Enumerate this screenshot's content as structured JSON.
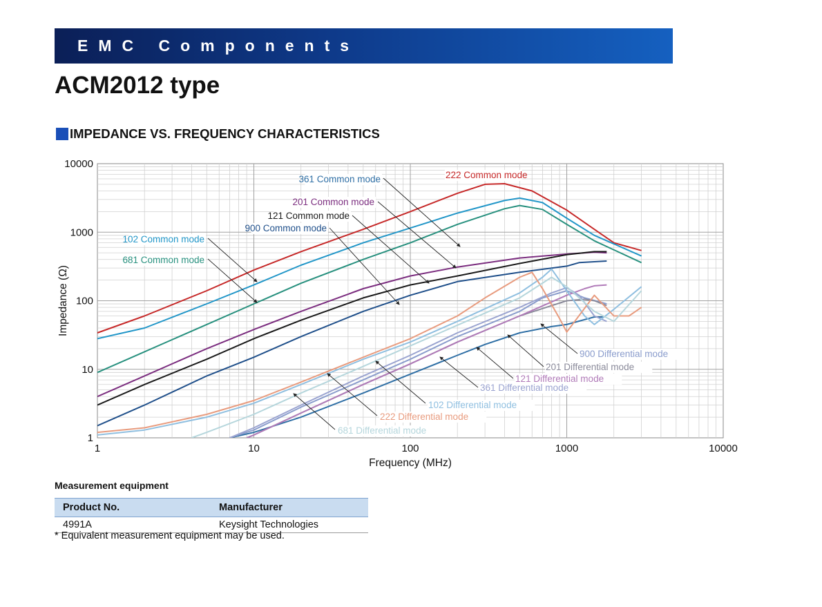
{
  "header": {
    "banner": "EMC Components",
    "title": "ACM2012 type"
  },
  "section": {
    "heading": "IMPEDANCE VS. FREQUENCY CHARACTERISTICS",
    "icon": "square-bullet-icon"
  },
  "chart_data": {
    "type": "line",
    "xlabel": "Frequency (MHz)",
    "ylabel": "Impedance (Ω)",
    "xscale": "log",
    "yscale": "log",
    "xlim": [
      1,
      10000
    ],
    "ylim": [
      1,
      10000
    ],
    "xticks": [
      "1",
      "10",
      "100",
      "1000",
      "10000"
    ],
    "yticks": [
      "1",
      "10",
      "100",
      "1000",
      "10000"
    ],
    "grid": true,
    "series": [
      {
        "name": "222 Common mode",
        "color": "#c62828",
        "x": [
          1,
          2,
          5,
          10,
          20,
          50,
          100,
          200,
          300,
          400,
          600,
          1000,
          1500,
          2000,
          3000
        ],
        "y": [
          34,
          60,
          140,
          280,
          520,
          1100,
          2000,
          3700,
          5000,
          5100,
          4000,
          2100,
          1100,
          700,
          540
        ]
      },
      {
        "name": "361 Common mode",
        "color": "#2f6fa5",
        "x": [
          7,
          10,
          20,
          50,
          100,
          200,
          300,
          500,
          800,
          1000,
          1500,
          1700
        ],
        "y": [
          1,
          1.2,
          2,
          4.5,
          8.5,
          16,
          23,
          34,
          42,
          45,
          58,
          58
        ]
      },
      {
        "name": "201 Common mode",
        "color": "#7b2d7f",
        "x": [
          1,
          2,
          5,
          10,
          20,
          50,
          100,
          200,
          500,
          1000,
          1500,
          1800
        ],
        "y": [
          4,
          8,
          20,
          38,
          70,
          150,
          230,
          310,
          420,
          480,
          510,
          500
        ]
      },
      {
        "name": "121 Common mode",
        "color": "#1a1a1a",
        "x": [
          1,
          2,
          5,
          10,
          20,
          50,
          100,
          200,
          500,
          1000,
          1500,
          1800
        ],
        "y": [
          3,
          6,
          14,
          28,
          52,
          110,
          170,
          230,
          350,
          470,
          520,
          520
        ]
      },
      {
        "name": "900 Common mode",
        "color": "#1f4f8a",
        "x": [
          1,
          2,
          5,
          10,
          20,
          50,
          100,
          200,
          500,
          1000,
          1200,
          1800
        ],
        "y": [
          1.5,
          3,
          8,
          15,
          30,
          70,
          120,
          190,
          260,
          320,
          360,
          380
        ]
      },
      {
        "name": "102 Common mode",
        "color": "#2196c8",
        "x": [
          1,
          2,
          5,
          10,
          20,
          50,
          100,
          200,
          400,
          500,
          700,
          1000,
          1500,
          3000
        ],
        "y": [
          28,
          40,
          90,
          170,
          330,
          700,
          1150,
          1900,
          2900,
          3150,
          2700,
          1600,
          900,
          450
        ]
      },
      {
        "name": "681 Common mode",
        "color": "#27907e",
        "x": [
          1,
          2,
          5,
          10,
          20,
          50,
          100,
          200,
          400,
          500,
          700,
          1000,
          1500,
          3000
        ],
        "y": [
          9,
          18,
          45,
          90,
          180,
          400,
          700,
          1300,
          2200,
          2450,
          2150,
          1300,
          750,
          360
        ]
      },
      {
        "name": "900 Differential mode",
        "color": "#8a9ccc",
        "x": [
          7,
          10,
          20,
          50,
          100,
          200,
          500,
          700,
          1000,
          1300,
          1800
        ],
        "y": [
          1,
          1.3,
          2.8,
          7,
          14,
          30,
          70,
          110,
          140,
          110,
          90
        ]
      },
      {
        "name": "201 Differential mode",
        "color": "#8a8a9a",
        "x": [
          9,
          10,
          20,
          50,
          100,
          200,
          500,
          1000,
          1300,
          1500,
          1800
        ],
        "y": [
          1,
          1.1,
          2.3,
          6,
          12,
          25,
          60,
          100,
          105,
          100,
          85
        ]
      },
      {
        "name": "121 Differential mode",
        "color": "#b07ab8",
        "x": [
          9,
          10,
          20,
          50,
          100,
          200,
          500,
          1000,
          1300,
          1500,
          1800
        ],
        "y": [
          1,
          1.1,
          2.3,
          6,
          12,
          25,
          60,
          120,
          150,
          165,
          170
        ]
      },
      {
        "name": "361 Differential mode",
        "color": "#9aa3d0",
        "x": [
          7,
          10,
          20,
          50,
          100,
          200,
          500,
          800,
          1000,
          1200,
          1500,
          1800
        ],
        "y": [
          1,
          1.4,
          3,
          8,
          16,
          34,
          80,
          130,
          155,
          120,
          60,
          50
        ]
      },
      {
        "name": "102 Differential mode",
        "color": "#8fbfe0",
        "x": [
          1,
          2,
          5,
          10,
          20,
          50,
          100,
          200,
          500,
          700,
          800,
          1000,
          1300,
          1500,
          2000,
          3000
        ],
        "y": [
          1.1,
          1.3,
          2,
          3.2,
          6,
          14,
          25,
          50,
          130,
          220,
          290,
          140,
          60,
          45,
          75,
          160
        ]
      },
      {
        "name": "222 Differential mode",
        "color": "#e89b7e",
        "x": [
          1,
          2,
          5,
          10,
          20,
          50,
          100,
          200,
          300,
          500,
          600,
          700,
          900,
          1000,
          1500,
          2000,
          2500,
          3000
        ],
        "y": [
          1.2,
          1.4,
          2.2,
          3.5,
          6.5,
          15,
          28,
          60,
          110,
          220,
          260,
          150,
          55,
          35,
          120,
          60,
          60,
          80
        ]
      },
      {
        "name": "681  Differential mode",
        "color": "#b5d6dc",
        "x": [
          4,
          5,
          10,
          20,
          50,
          100,
          200,
          500,
          800,
          1000,
          1500,
          2000,
          3000
        ],
        "y": [
          1,
          1.2,
          2.2,
          4.5,
          11,
          22,
          44,
          110,
          220,
          160,
          70,
          50,
          140
        ]
      }
    ],
    "annotations": [
      {
        "text": "222 Common mode",
        "series": 0
      },
      {
        "text": "361 Common mode",
        "series": 1
      },
      {
        "text": "201 Common mode",
        "series": 2
      },
      {
        "text": "121 Common mode",
        "series": 3
      },
      {
        "text": "900 Common mode",
        "series": 4
      },
      {
        "text": "102 Common mode",
        "series": 5
      },
      {
        "text": "681 Common mode",
        "series": 6
      },
      {
        "text": "900 Differential mode",
        "series": 7
      },
      {
        "text": "201 Differential mode",
        "series": 8
      },
      {
        "text": "121 Differential mode",
        "series": 9
      },
      {
        "text": "361 Differential mode",
        "series": 10
      },
      {
        "text": "102 Differential mode",
        "series": 11
      },
      {
        "text": "222 Differential mode",
        "series": 12
      },
      {
        "text": "681  Differential mode",
        "series": 13
      }
    ]
  },
  "measurement": {
    "heading": "Measurement equipment",
    "col_product": "Product No.",
    "col_manufacturer": "Manufacturer",
    "rows": [
      {
        "product": "4991A",
        "manufacturer": "Keysight Technologies"
      }
    ],
    "note": "* Equivalent measurement equipment may be used."
  }
}
